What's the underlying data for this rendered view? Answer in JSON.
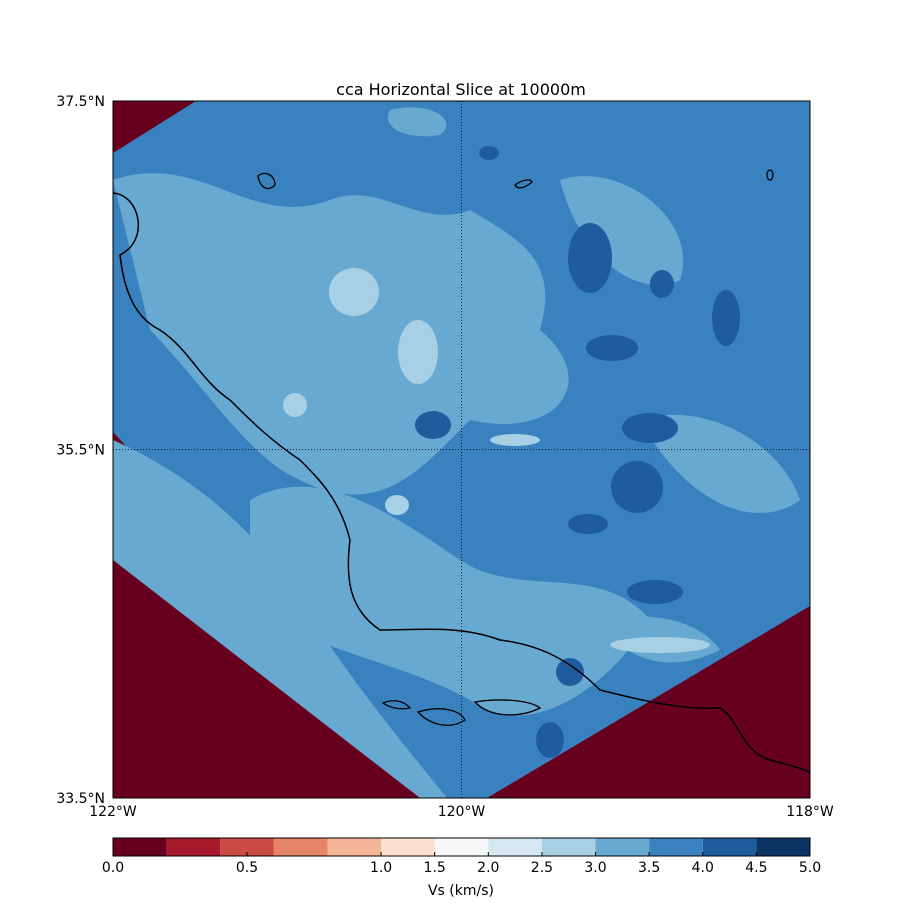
{
  "chart_data": {
    "type": "map",
    "title": "cca Horizontal Slice at 10000m",
    "xlim": [
      -122,
      -118
    ],
    "xticks": [
      {
        "value": -122,
        "label": "122°W"
      },
      {
        "value": -120,
        "label": "120°W"
      },
      {
        "value": -118,
        "label": "118°W"
      }
    ],
    "ylim": [
      33.5,
      37.5
    ],
    "yticks": [
      {
        "value": 33.5,
        "label": "33.5°N"
      },
      {
        "value": 35.5,
        "label": "35.5°N"
      },
      {
        "value": 37.5,
        "label": "37.5°N"
      }
    ],
    "grid": true,
    "colorbar": {
      "label": "Vs (km/s)",
      "boundaries": [
        0,
        0.2,
        0.4,
        0.6,
        0.8,
        1.0,
        1.5,
        2.0,
        2.5,
        3.0,
        3.5,
        4.0,
        4.5,
        5.0
      ],
      "colors": [
        "#67001f",
        "#a8182c",
        "#cb4a42",
        "#e68468",
        "#f6b596",
        "#fbe0d1",
        "#f7f7f7",
        "#d6e7f1",
        "#a7d0e4",
        "#68a9d1",
        "#3a82bf",
        "#1f5c9e",
        "#0b3464"
      ],
      "ticks": [
        {
          "value": 0,
          "label": "0.0"
        },
        0.5,
        {
          "value": 1,
          "label": "1.0"
        },
        1.5,
        {
          "value": 2,
          "label": "2.0"
        },
        2.5,
        {
          "value": 3,
          "label": "3.0"
        },
        3.5,
        {
          "value": 4,
          "label": "4.0"
        },
        4.5,
        {
          "value": 5,
          "label": "5.0"
        }
      ]
    }
  }
}
